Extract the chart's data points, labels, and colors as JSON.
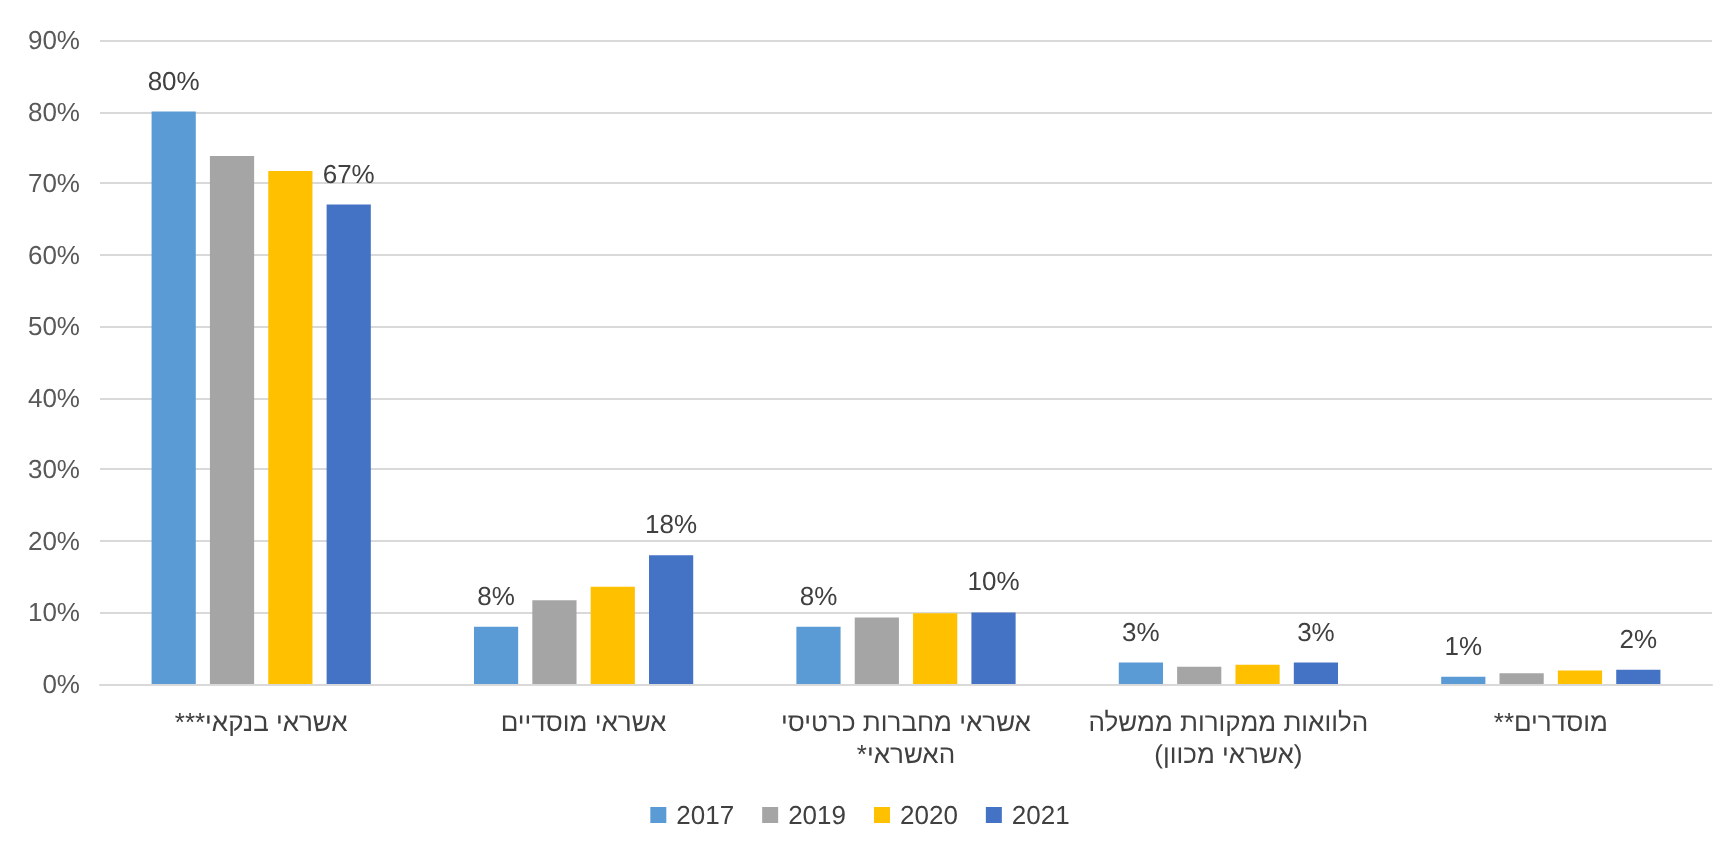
{
  "chart_data": {
    "type": "bar",
    "categories": [
      "אשראי בנקאי***",
      "אשראי מוסדיים",
      "אשראי מחברות כרטיסי האשראי*",
      "הלוואות ממקורות ממשלה (אשראי מכוון)",
      "מוסדרים**"
    ],
    "series": [
      {
        "name": "2017",
        "color": "#5b9bd5",
        "values": [
          80,
          8,
          8,
          3,
          1
        ],
        "value_labels": [
          "80%",
          "8%",
          "8%",
          "3%",
          "1%"
        ]
      },
      {
        "name": "2019",
        "color": "#a5a5a5",
        "values": [
          73.8,
          11.7,
          9.3,
          2.4,
          1.5
        ]
      },
      {
        "name": "2020",
        "color": "#ffc000",
        "values": [
          71.7,
          13.6,
          9.9,
          2.7,
          1.9
        ]
      },
      {
        "name": "2021",
        "color": "#4472c4",
        "values": [
          67,
          18,
          10,
          3,
          2
        ],
        "value_labels": [
          "67%",
          "18%",
          "10%",
          "3%",
          "2%"
        ]
      }
    ],
    "ylim": [
      0,
      90
    ],
    "yticks": [
      {
        "value": 0,
        "label": "0%"
      },
      {
        "value": 10,
        "label": "10%"
      },
      {
        "value": 20,
        "label": "20%"
      },
      {
        "value": 30,
        "label": "30%"
      },
      {
        "value": 40,
        "label": "40%"
      },
      {
        "value": 50,
        "label": "50%"
      },
      {
        "value": 60,
        "label": "60%"
      },
      {
        "value": 70,
        "label": "70%"
      },
      {
        "value": 80,
        "label": "80%"
      },
      {
        "value": 90,
        "label": "90%"
      }
    ],
    "grid": "y",
    "legend": "bottom"
  }
}
